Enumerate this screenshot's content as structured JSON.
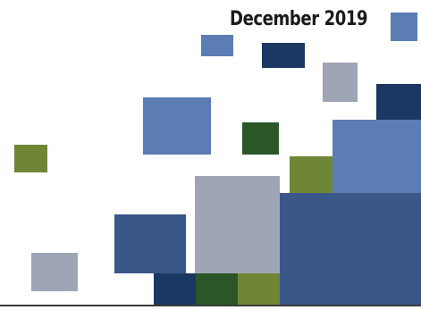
{
  "header": {
    "date_label": "December 2019"
  },
  "colors": {
    "steel_blue": "#5b7db4",
    "dark_navy": "#1a3861",
    "slate_gray": "#9ea6b5",
    "olive_green": "#6f8636",
    "forest_green": "#2a5628",
    "denim_blue": "#3a5789",
    "baseline": "#3a3a3a"
  }
}
